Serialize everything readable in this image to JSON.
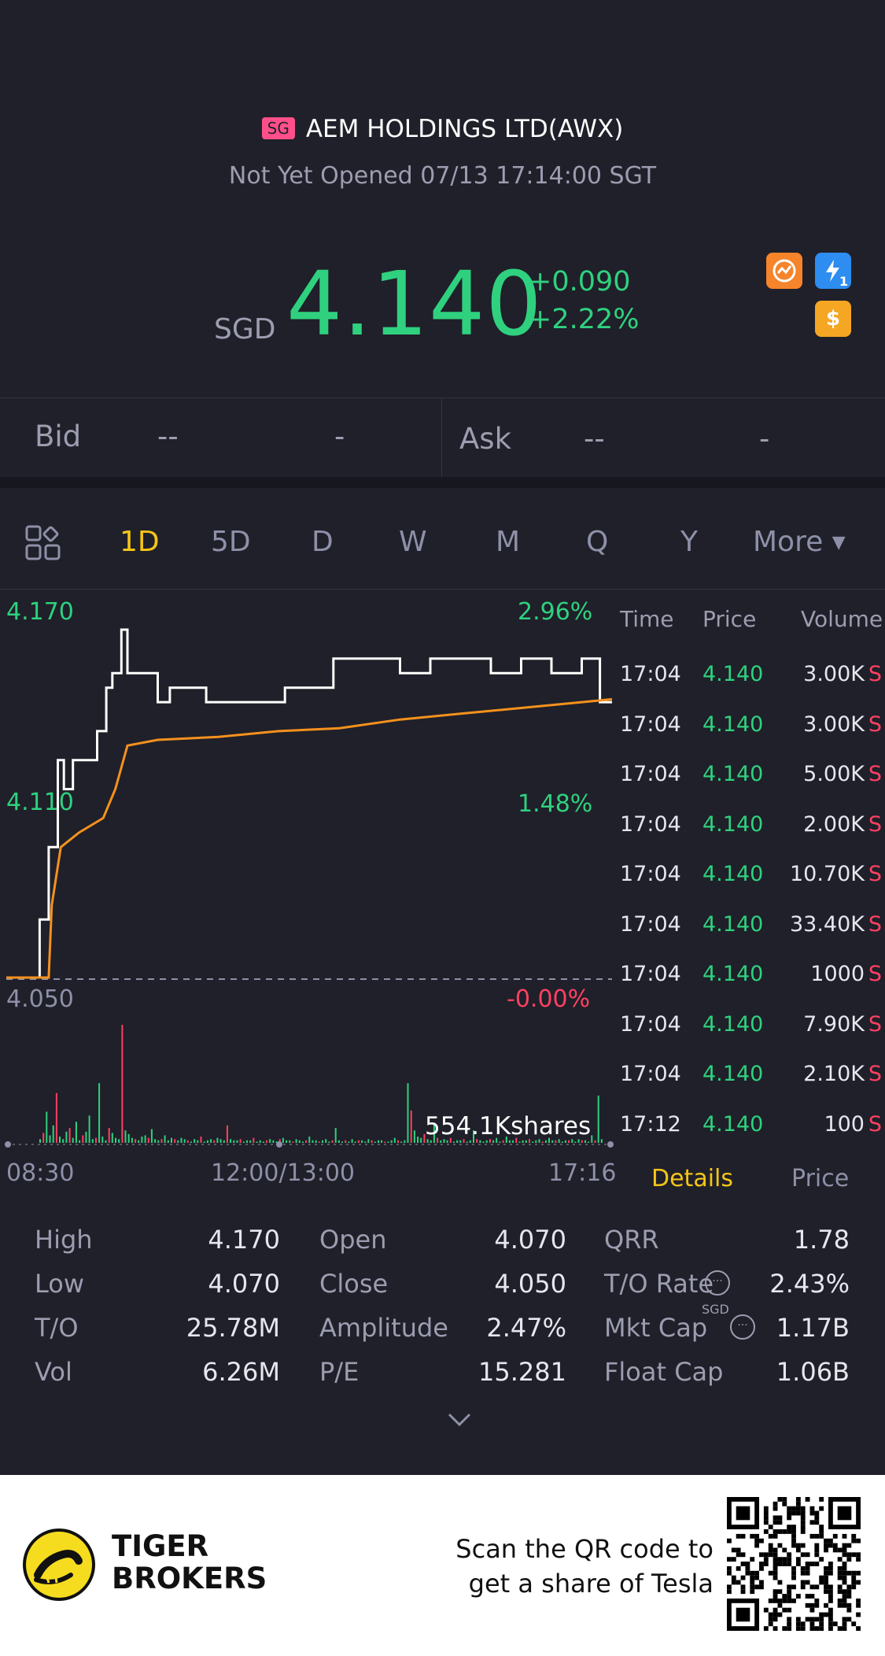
{
  "header": {
    "market_badge": "SG",
    "title": "AEM HOLDINGS LTD(AWX)",
    "status": "Not Yet Opened 07/13 17:14:00 SGT",
    "currency": "SGD",
    "price": "4.140",
    "change": "+0.090",
    "change_pct": "+2.22%",
    "icons": [
      "chart-circle-icon",
      "lightning-level1-icon",
      "dollar-icon"
    ],
    "lightning_level": "1",
    "dollar_symbol": "$"
  },
  "quote": {
    "bid_label": "Bid",
    "bid_price": "--",
    "bid_size": "-",
    "ask_label": "Ask",
    "ask_price": "--",
    "ask_size": "-"
  },
  "tabs": [
    "1D",
    "5D",
    "D",
    "W",
    "M",
    "Q",
    "Y"
  ],
  "tabs_more": "More",
  "active_tab": "1D",
  "chart_data": {
    "type": "line",
    "y_labels": {
      "high": "4.170",
      "mid": "4.110",
      "low": "4.050"
    },
    "pct_labels": {
      "high": "2.96%",
      "mid": "1.48%",
      "low": "-0.00%"
    },
    "x_labels": [
      "08:30",
      "12:00/13:00",
      "17:16"
    ],
    "volume_label": "554.1Kshares",
    "ylim": [
      4.05,
      4.17
    ],
    "prev_close": 4.05,
    "series": [
      {
        "color": "#ffffff",
        "points": [
          [
            0,
            4.05
          ],
          [
            0.05,
            4.05
          ],
          [
            0.055,
            4.07
          ],
          [
            0.07,
            4.095
          ],
          [
            0.085,
            4.125
          ],
          [
            0.095,
            4.115
          ],
          [
            0.11,
            4.125
          ],
          [
            0.13,
            4.125
          ],
          [
            0.15,
            4.135
          ],
          [
            0.165,
            4.15
          ],
          [
            0.175,
            4.155
          ],
          [
            0.19,
            4.17
          ],
          [
            0.2,
            4.155
          ],
          [
            0.23,
            4.155
          ],
          [
            0.25,
            4.145
          ],
          [
            0.27,
            4.15
          ],
          [
            0.3,
            4.15
          ],
          [
            0.33,
            4.145
          ],
          [
            0.38,
            4.145
          ],
          [
            0.43,
            4.145
          ],
          [
            0.46,
            4.15
          ],
          [
            0.5,
            4.15
          ],
          [
            0.54,
            4.16
          ],
          [
            0.6,
            4.16
          ],
          [
            0.65,
            4.155
          ],
          [
            0.7,
            4.16
          ],
          [
            0.75,
            4.16
          ],
          [
            0.8,
            4.155
          ],
          [
            0.85,
            4.16
          ],
          [
            0.9,
            4.155
          ],
          [
            0.95,
            4.16
          ],
          [
            0.975,
            4.16
          ],
          [
            0.98,
            4.145
          ],
          [
            1,
            4.145
          ]
        ]
      },
      {
        "color": "#f5911e",
        "points": [
          [
            0,
            4.05
          ],
          [
            0.07,
            4.05
          ],
          [
            0.075,
            4.075
          ],
          [
            0.09,
            4.095
          ],
          [
            0.12,
            4.1
          ],
          [
            0.16,
            4.105
          ],
          [
            0.18,
            4.115
          ],
          [
            0.2,
            4.13
          ],
          [
            0.25,
            4.132
          ],
          [
            0.35,
            4.133
          ],
          [
            0.45,
            4.135
          ],
          [
            0.55,
            4.136
          ],
          [
            0.65,
            4.139
          ],
          [
            0.75,
            4.141
          ],
          [
            0.85,
            4.143
          ],
          [
            0.95,
            4.145
          ],
          [
            1,
            4.146
          ]
        ]
      }
    ],
    "volume": [
      3,
      8,
      25,
      6,
      14,
      40,
      5,
      3,
      9,
      12,
      4,
      17,
      2,
      6,
      9,
      22,
      3,
      4,
      48,
      5,
      2,
      12,
      8,
      4,
      3,
      95,
      10,
      7,
      4,
      3,
      2,
      5,
      6,
      4,
      11,
      3,
      2,
      3,
      6,
      2,
      4,
      3,
      2,
      4,
      3,
      2,
      1,
      3,
      2,
      5,
      1,
      2,
      3,
      2,
      4,
      3,
      2,
      14,
      3,
      2,
      2,
      3,
      1,
      2,
      2,
      4,
      1,
      2,
      1,
      2,
      3,
      2,
      1,
      3,
      4,
      2,
      2,
      1,
      3,
      2,
      1,
      2,
      5,
      2,
      2,
      1,
      2,
      3,
      1,
      2,
      12,
      2,
      1,
      2,
      1,
      3,
      1,
      2,
      2,
      1,
      3,
      2,
      1,
      2,
      2,
      1,
      1,
      2,
      4,
      2,
      1,
      2,
      48,
      26,
      10,
      5,
      4,
      7,
      3,
      2,
      16,
      4,
      2,
      3,
      2,
      4,
      1,
      2,
      2,
      3,
      1,
      2,
      10,
      3,
      2,
      1,
      2,
      3,
      2,
      4,
      1,
      2,
      5,
      2,
      2,
      4,
      1,
      2,
      2,
      3,
      1,
      2,
      3,
      1,
      2,
      4,
      2,
      2,
      3,
      1,
      2,
      2,
      3,
      1,
      3,
      2,
      2,
      1,
      6,
      2,
      38,
      3
    ]
  },
  "ticks": {
    "headers": [
      "Time",
      "Price",
      "Volume"
    ],
    "rows": [
      {
        "time": "17:04",
        "price": "4.140",
        "volume": "3.00K",
        "flag": "S"
      },
      {
        "time": "17:04",
        "price": "4.140",
        "volume": "3.00K",
        "flag": "S"
      },
      {
        "time": "17:04",
        "price": "4.140",
        "volume": "5.00K",
        "flag": "S"
      },
      {
        "time": "17:04",
        "price": "4.140",
        "volume": "2.00K",
        "flag": "S"
      },
      {
        "time": "17:04",
        "price": "4.140",
        "volume": "10.70K",
        "flag": "S"
      },
      {
        "time": "17:04",
        "price": "4.140",
        "volume": "33.40K",
        "flag": "S"
      },
      {
        "time": "17:04",
        "price": "4.140",
        "volume": "1000",
        "flag": "S"
      },
      {
        "time": "17:04",
        "price": "4.140",
        "volume": "7.90K",
        "flag": "S"
      },
      {
        "time": "17:04",
        "price": "4.140",
        "volume": "2.10K",
        "flag": "S"
      },
      {
        "time": "17:12",
        "price": "4.140",
        "volume": "100",
        "flag": "S"
      }
    ],
    "tab_details": "Details",
    "tab_price": "Price"
  },
  "stats": {
    "col1": [
      {
        "label": "High",
        "value": "4.170"
      },
      {
        "label": "Low",
        "value": "4.070"
      },
      {
        "label": "T/O",
        "value": "25.78M"
      },
      {
        "label": "Vol",
        "value": "6.26M"
      }
    ],
    "col2": [
      {
        "label": "Open",
        "value": "4.070"
      },
      {
        "label": "Close",
        "value": "4.050"
      },
      {
        "label": "Amplitude",
        "value": "2.47%"
      },
      {
        "label": "P/E",
        "value": "15.281"
      }
    ],
    "col3": [
      {
        "label": "QRR",
        "value": "1.78"
      },
      {
        "label": "T/O Rate",
        "value": "2.43%"
      },
      {
        "label": "Mkt Cap",
        "value": "1.17B",
        "sup": "SGD"
      },
      {
        "label": "Float Cap",
        "value": "1.06B"
      }
    ]
  },
  "footer": {
    "brand_line1": "TIGER",
    "brand_line2": "BROKERS",
    "promo_line1": "Scan the QR code to",
    "promo_line2": "get a share of Tesla"
  }
}
